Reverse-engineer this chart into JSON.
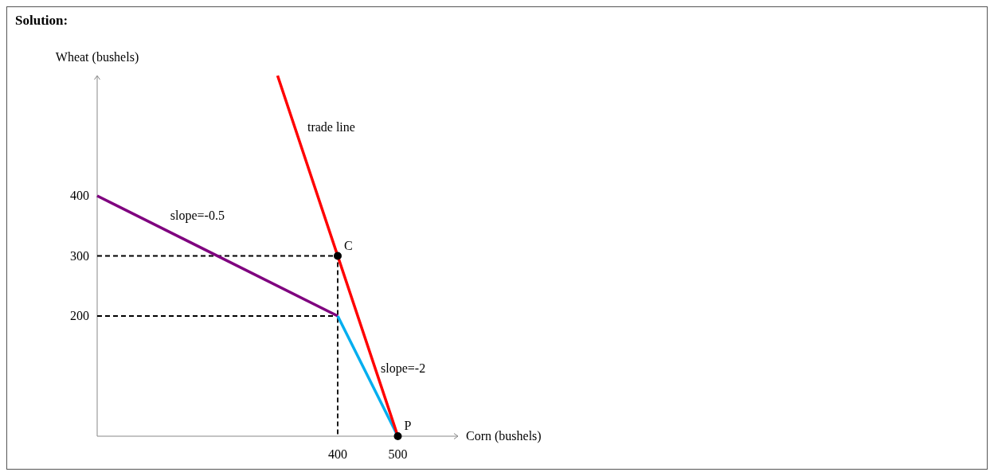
{
  "chart_data": {
    "type": "line",
    "title": "Solution:",
    "xlabel": "Corn (bushels)",
    "ylabel": "Wheat (bushels)",
    "xlim": [
      0,
      600
    ],
    "ylim": [
      0,
      600
    ],
    "xticks": [
      400,
      500
    ],
    "yticks": [
      200,
      300,
      400
    ],
    "grid": false,
    "series": [
      {
        "color": "#000000",
        "line_style": "dashed",
        "x": [
          0,
          400,
          400
        ],
        "values": [
          300,
          300,
          0
        ]
      },
      {
        "color": "#000000",
        "line_style": "dashed",
        "x": [
          0,
          400
        ],
        "values": [
          200,
          200
        ]
      },
      {
        "color": "#7f007f",
        "line_style": "solid",
        "x": [
          0,
          400
        ],
        "values": [
          400,
          200
        ]
      },
      {
        "color": "#00aeef",
        "line_style": "solid",
        "x": [
          400,
          500
        ],
        "values": [
          200,
          0
        ]
      },
      {
        "color": "#ff0000",
        "line_style": "solid",
        "x": [
          300,
          500
        ],
        "values": [
          600,
          0
        ]
      },
      {
        "type": "scatter",
        "color": "#000000",
        "marker": "circle",
        "x": [
          400,
          500
        ],
        "values": [
          300,
          0
        ]
      }
    ],
    "annotations": [
      {
        "text": "trade line",
        "x": 339,
        "y": 497
      },
      {
        "text": "slope=-0.5",
        "x": 111,
        "y": 350
      },
      {
        "text": "slope=-2",
        "x": 461,
        "y": 96
      },
      {
        "text": "C",
        "x": 400,
        "y": 300
      },
      {
        "text": "P",
        "x": 500,
        "y": 0
      }
    ]
  }
}
